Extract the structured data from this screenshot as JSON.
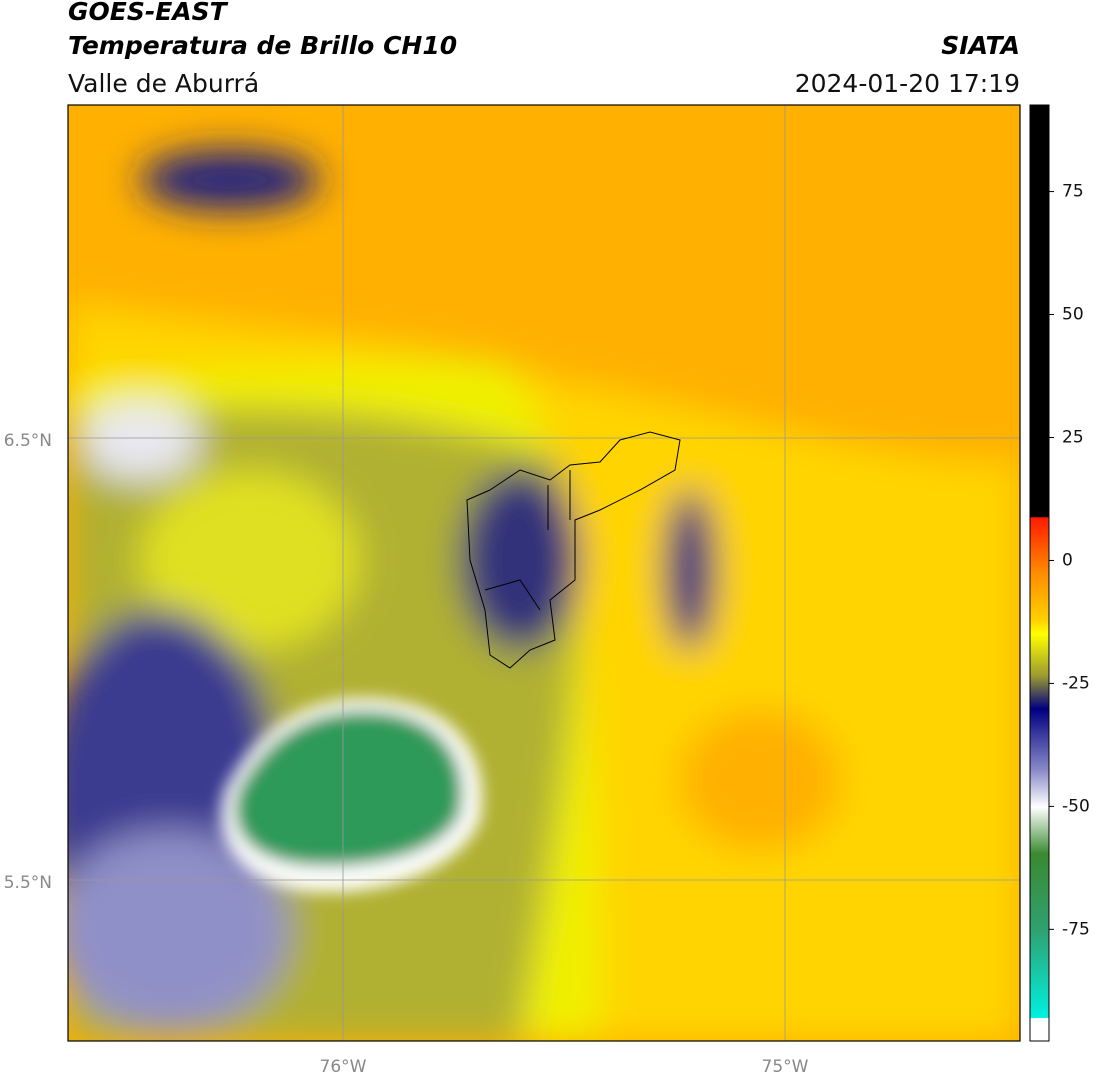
{
  "header": {
    "title": "GOES-EAST",
    "subtitle": "Temperatura de Brillo CH10",
    "region": "Valle de Aburrá",
    "source": "SIATA",
    "datetime": "2024-01-20 17:19"
  },
  "map": {
    "lat_labels": [
      "6.5°N",
      "5.5°N"
    ],
    "lon_labels": [
      "76°W",
      "75°W"
    ]
  },
  "colorbar": {
    "range": [
      -97.7,
      92.6
    ],
    "ticks": [
      -75,
      -50,
      -25,
      0,
      25,
      50,
      75
    ]
  }
}
